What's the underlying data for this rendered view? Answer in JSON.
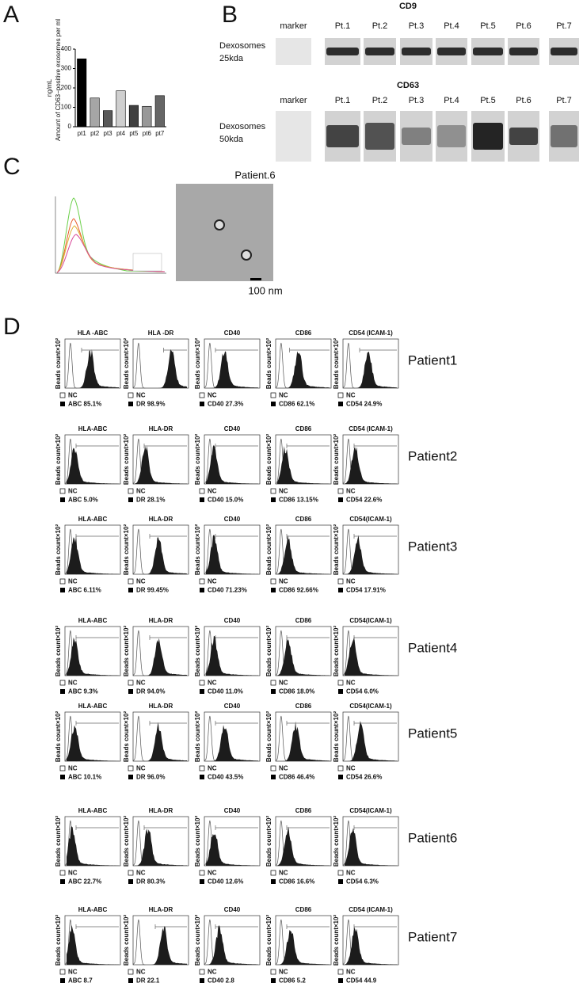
{
  "panel_labels": [
    "A",
    "B",
    "C",
    "D"
  ],
  "chart_data": {
    "type": "bar",
    "y_label": [
      "ng/mL",
      "Amount of CD63−positive exosomes per ml"
    ],
    "categories": [
      "pt1",
      "pt2",
      "pt3",
      "pt4",
      "pt5",
      "pt6",
      "pt7"
    ],
    "values": [
      350,
      148,
      83,
      185,
      110,
      105,
      160
    ],
    "colors": [
      "#000000",
      "#a6a6a6",
      "#595959",
      "#cfcfcf",
      "#404040",
      "#999999",
      "#666666"
    ],
    "ylim": [
      0,
      400
    ],
    "yticks": [
      0,
      100,
      200,
      300,
      400
    ]
  },
  "blots": [
    {
      "title": "CD9",
      "lanes": [
        "marker",
        "Pt.1",
        "Pt.2",
        "Pt.3",
        "Pt.4",
        "Pt.5",
        "Pt.6",
        "Pt.7"
      ],
      "label": [
        "Dexosomes",
        "25kda"
      ]
    },
    {
      "title": "CD63",
      "lanes": [
        "marker",
        "Pt.1",
        "Pt.2",
        "Pt.3",
        "Pt.4",
        "Pt.5",
        "Pt.6",
        "Pt.7"
      ],
      "label": [
        "Dexosomes",
        "50kda"
      ]
    }
  ],
  "em": {
    "title": "Patient.6",
    "scale_bar": "100 nm"
  },
  "flow": {
    "y_label": "Beads count×10²",
    "control": "NC",
    "rows": [
      {
        "patient": "Patient1",
        "panels": [
          {
            "title": "HLA -ABC",
            "label": "ABC  85.1%"
          },
          {
            "title": "HLA -DR",
            "label": "DR  98.9%"
          },
          {
            "title": "CD40",
            "label": "CD40  27.3%"
          },
          {
            "title": "CD86",
            "label": "CD86  62.1%"
          },
          {
            "title": "CD54 (ICAM-1)",
            "label": "CD54   24.9%"
          }
        ]
      },
      {
        "patient": "Patient2",
        "panels": [
          {
            "title": "HLA-ABC",
            "label": "ABC 5.0%"
          },
          {
            "title": "HLA-DR",
            "label": "DR 28.1%"
          },
          {
            "title": "CD40",
            "label": "CD40 15.0%"
          },
          {
            "title": "CD86",
            "label": "CD86 13.15%"
          },
          {
            "title": "CD54 (ICAM-1)",
            "label": "CD54 22.6%"
          }
        ]
      },
      {
        "patient": "Patient3",
        "panels": [
          {
            "title": "HLA-ABC",
            "label": "ABC 6.11%"
          },
          {
            "title": "HLA-DR",
            "label": "DR 99.45%"
          },
          {
            "title": "CD40",
            "label": "CD40 71.23%"
          },
          {
            "title": "CD86",
            "label": "CD86 92.66%"
          },
          {
            "title": "CD54(ICAM-1)",
            "label": "CD54 17.91%"
          }
        ]
      },
      {
        "patient": "Patient4",
        "panels": [
          {
            "title": "HLA-ABC",
            "label": "ABC 9.3%"
          },
          {
            "title": "HLA-DR",
            "label": "DR 94.0%"
          },
          {
            "title": "CD40",
            "label": "CD40 11.0%"
          },
          {
            "title": "CD86",
            "label": "CD86 18.0%"
          },
          {
            "title": "CD54(ICAM-1)",
            "label": "CD54 6.0%"
          }
        ]
      },
      {
        "patient": "Patient5",
        "panels": [
          {
            "title": "HLA-ABC",
            "label": "ABC 10.1%"
          },
          {
            "title": "HLA-DR",
            "label": "DR 96.0%"
          },
          {
            "title": "CD40",
            "label": "CD40 43.5%"
          },
          {
            "title": "CD86",
            "label": "CD86 46.4%"
          },
          {
            "title": "CD54(ICAM-1)",
            "label": "CD54 26.6%"
          }
        ]
      },
      {
        "patient": "Patient6",
        "panels": [
          {
            "title": "HLA-ABC",
            "label": "ABC 22.7%"
          },
          {
            "title": "HLA-DR",
            "label": "DR 80.3%"
          },
          {
            "title": "CD40",
            "label": "CD40 12.6%"
          },
          {
            "title": "CD86",
            "label": "CD86  16.6%"
          },
          {
            "title": "CD54(ICAM-1)",
            "label": "CD54   6.3%"
          }
        ]
      },
      {
        "patient": "Patient7",
        "panels": [
          {
            "title": "HLA-ABC",
            "label": "ABC 8.7"
          },
          {
            "title": "HLA-DR",
            "label": "DR 22.1"
          },
          {
            "title": "CD40",
            "label": "CD40 2.8"
          },
          {
            "title": "CD86",
            "label": "CD86 5.2"
          },
          {
            "title": "CD54 (ICAM-1)",
            "label": "CD54 44.9"
          }
        ]
      }
    ]
  }
}
